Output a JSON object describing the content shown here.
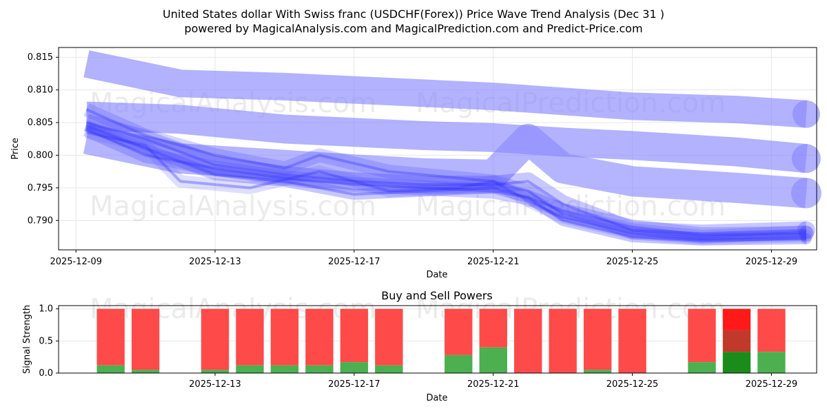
{
  "chart_data": [
    {
      "type": "line",
      "title_line1": "United States dollar With Swiss franc (USDCHF(Forex)) Price Wave Trend Analysis (Dec 31 )",
      "title_line2": "powered by MagicalAnalysis.com and MagicalPrediction.com and Predict-Price.com",
      "xlabel": "Date",
      "ylabel": "Price",
      "xlim_days": [
        -0.5,
        21.3
      ],
      "ylim": [
        0.7855,
        0.8165
      ],
      "x_ticks": [
        {
          "day": 0,
          "label": "2025-12-09"
        },
        {
          "day": 4,
          "label": "2025-12-13"
        },
        {
          "day": 8,
          "label": "2025-12-17"
        },
        {
          "day": 12,
          "label": "2025-12-21"
        },
        {
          "day": 16,
          "label": "2025-12-25"
        },
        {
          "day": 20,
          "label": "2025-12-29"
        }
      ],
      "y_ticks": [
        0.79,
        0.795,
        0.8,
        0.805,
        0.81,
        0.815
      ],
      "y_tick_labels": [
        "0.790",
        "0.795",
        "0.800",
        "0.805",
        "0.810",
        "0.815"
      ],
      "grid": true,
      "series": [
        {
          "name": "wave-band-1",
          "x": [
            0.3,
            3,
            6,
            10,
            12,
            16,
            19,
            21
          ],
          "y": [
            0.814,
            0.811,
            0.8105,
            0.8095,
            0.809,
            0.8075,
            0.807,
            0.8063
          ]
        },
        {
          "name": "wave-band-2",
          "x": [
            0.3,
            3,
            6,
            10,
            12,
            14,
            16,
            19,
            21
          ],
          "y": [
            0.806,
            0.8055,
            0.804,
            0.803,
            0.8027,
            0.802,
            0.8015,
            0.8005,
            0.7995
          ]
        },
        {
          "name": "wave-band-3",
          "x": [
            0.3,
            3,
            6,
            8,
            10,
            12,
            13,
            14,
            16,
            19,
            21
          ],
          "y": [
            0.8025,
            0.7995,
            0.7985,
            0.7978,
            0.7972,
            0.797,
            0.8025,
            0.798,
            0.796,
            0.795,
            0.7942
          ]
        },
        {
          "name": "wave-band-4",
          "x": [
            0.3,
            2,
            4,
            6,
            8,
            10,
            12,
            13,
            14,
            16,
            18,
            21
          ],
          "y": [
            0.805,
            0.8025,
            0.7985,
            0.797,
            0.796,
            0.7955,
            0.7955,
            0.796,
            0.7925,
            0.7885,
            0.788,
            0.7885
          ]
        },
        {
          "name": "wave-band-5",
          "x": [
            0.3,
            2,
            4,
            6,
            8,
            10,
            12,
            13,
            14,
            16,
            18,
            21
          ],
          "y": [
            0.804,
            0.8,
            0.798,
            0.7965,
            0.7955,
            0.795,
            0.7945,
            0.7935,
            0.7915,
            0.789,
            0.7878,
            0.788
          ]
        },
        {
          "name": "wave-band-6",
          "x": [
            0.3,
            2,
            3,
            5,
            7,
            9,
            11,
            12,
            13,
            14,
            16,
            18,
            21
          ],
          "y": [
            0.8035,
            0.8015,
            0.796,
            0.795,
            0.7975,
            0.7945,
            0.795,
            0.796,
            0.793,
            0.7905,
            0.788,
            0.7872,
            0.7876
          ]
        },
        {
          "name": "wave-band-7",
          "x": [
            0.3,
            2,
            4,
            6,
            7,
            9,
            12,
            13,
            14,
            16,
            18,
            21
          ],
          "y": [
            0.807,
            0.803,
            0.8,
            0.798,
            0.8,
            0.7975,
            0.796,
            0.7945,
            0.791,
            0.7885,
            0.7875,
            0.7882
          ]
        },
        {
          "name": "wave-band-8",
          "x": [
            0.3,
            2,
            4,
            6,
            8,
            10,
            12,
            13,
            14,
            16,
            18,
            21
          ],
          "y": [
            0.8045,
            0.801,
            0.797,
            0.796,
            0.794,
            0.7945,
            0.795,
            0.7935,
            0.79,
            0.7875,
            0.787,
            0.7872
          ]
        }
      ],
      "watermarks": [
        "MagicalAnalysis.com",
        "MagicalPrediction.com",
        "MagicalAnalysis.com",
        "MagicalPrediction.com"
      ]
    },
    {
      "type": "bar",
      "title": "Buy and Sell Powers",
      "xlabel": "Date",
      "ylabel": "Signal Strength",
      "ylim": [
        0,
        1.05
      ],
      "y_ticks": [
        0.0,
        0.5,
        1.0
      ],
      "y_tick_labels": [
        "0.0",
        "0.5",
        "1.0"
      ],
      "xlim_days": [
        -0.5,
        21.3
      ],
      "x_ticks": [
        {
          "day": 4,
          "label": "2025-12-13"
        },
        {
          "day": 8,
          "label": "2025-12-17"
        },
        {
          "day": 12,
          "label": "2025-12-21"
        },
        {
          "day": 16,
          "label": "2025-12-25"
        },
        {
          "day": 20,
          "label": "2025-12-29"
        }
      ],
      "colors": {
        "buy": "#4caf50",
        "sell": "#ff4a4a",
        "buy_strong": "#1a8c1a",
        "sell_strong": "#ff1a1a",
        "sell_mid": "#c0392b"
      },
      "bars": [
        {
          "date": "2025-12-10",
          "day": 1,
          "buy": 0.12,
          "sell": 0.88
        },
        {
          "date": "2025-12-11",
          "day": 2,
          "buy": 0.05,
          "sell": 0.95
        },
        {
          "date": "2025-12-13",
          "day": 4,
          "buy": 0.05,
          "sell": 0.95
        },
        {
          "date": "2025-12-14",
          "day": 5,
          "buy": 0.12,
          "sell": 0.88
        },
        {
          "date": "2025-12-15",
          "day": 6,
          "buy": 0.12,
          "sell": 0.88
        },
        {
          "date": "2025-12-16",
          "day": 7,
          "buy": 0.12,
          "sell": 0.88
        },
        {
          "date": "2025-12-17",
          "day": 8,
          "buy": 0.17,
          "sell": 0.83
        },
        {
          "date": "2025-12-18",
          "day": 9,
          "buy": 0.12,
          "sell": 0.88
        },
        {
          "date": "2025-12-20",
          "day": 11,
          "buy": 0.28,
          "sell": 0.72
        },
        {
          "date": "2025-12-21",
          "day": 12,
          "buy": 0.4,
          "sell": 0.6
        },
        {
          "date": "2025-12-22",
          "day": 13,
          "buy": 0.0,
          "sell": 1.0
        },
        {
          "date": "2025-12-23",
          "day": 14,
          "buy": 0.0,
          "sell": 1.0
        },
        {
          "date": "2025-12-24",
          "day": 15,
          "buy": 0.05,
          "sell": 0.95
        },
        {
          "date": "2025-12-25",
          "day": 16,
          "buy": 0.0,
          "sell": 1.0
        },
        {
          "date": "2025-12-27",
          "day": 18,
          "buy": 0.17,
          "sell": 0.83
        },
        {
          "date": "2025-12-28",
          "day": 19,
          "buy": 0.33,
          "sell": 0.67,
          "strong": true
        },
        {
          "date": "2025-12-29",
          "day": 20,
          "buy": 0.33,
          "sell": 0.67
        }
      ]
    }
  ]
}
